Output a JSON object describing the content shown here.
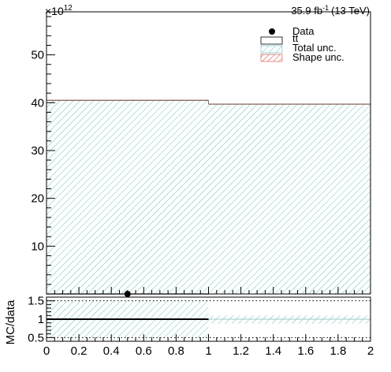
{
  "chart_data": [
    {
      "type": "bar",
      "panel": "main",
      "lumi_label": "35.9 fb",
      "lumi_sup": "-1",
      "lumi_energy": "(13 TeV)",
      "y_multiplier_base": "×10",
      "y_multiplier_exp": "12",
      "xlim": [
        0,
        2
      ],
      "ylim": [
        0,
        59
      ],
      "yticks": [
        10,
        20,
        30,
        40,
        50
      ],
      "ytick_labels": [
        "10",
        "20",
        "30",
        "40",
        "50"
      ],
      "bins": [
        [
          0,
          1
        ],
        [
          1,
          2
        ]
      ],
      "series": [
        {
          "name": "tt",
          "values": [
            40.5,
            39.7
          ]
        },
        {
          "name": "Data",
          "x": [
            0.5
          ],
          "values": [
            0.0
          ]
        }
      ],
      "uncertainty_bands": [
        {
          "name": "Total unc.",
          "lower": [
            0,
            0
          ],
          "upper": [
            40.5,
            39.7
          ]
        },
        {
          "name": "Shape unc.",
          "lower": [
            40.4,
            39.6
          ],
          "upper": [
            40.6,
            39.8
          ]
        }
      ],
      "legend": {
        "placement": "top-right",
        "entries": [
          {
            "label": "Data",
            "symbol": "marker"
          },
          {
            "label": "tt",
            "symbol": "box"
          },
          {
            "label": "Total unc.",
            "symbol": "hatch-teal"
          },
          {
            "label": "Shape unc.",
            "symbol": "hatch-red"
          }
        ]
      }
    },
    {
      "type": "line",
      "panel": "ratio",
      "ylabel": "MC/data",
      "xlim": [
        0,
        2
      ],
      "ylim": [
        0.4,
        1.6
      ],
      "yticks": [
        0.5,
        1,
        1.5
      ],
      "ytick_labels": [
        "0.5",
        "1",
        "1.5"
      ],
      "xticks": [
        0,
        0.2,
        0.4,
        0.6,
        0.8,
        1,
        1.2,
        1.4,
        1.6,
        1.8,
        2
      ],
      "xtick_labels": [
        "0",
        "0.2",
        "0.4",
        "0.6",
        "0.8",
        "1",
        "1.2",
        "1.4",
        "1.6",
        "1.8",
        "2"
      ],
      "dotted_reference_lines": [
        0.5,
        1.5
      ],
      "bins": [
        [
          0,
          1
        ],
        [
          1,
          2
        ]
      ],
      "ratio_values": [
        1.0,
        1.0
      ],
      "band": {
        "lower": [
          0.5,
          0.88
        ],
        "upper": [
          1.5,
          1.1
        ]
      }
    }
  ],
  "colors": {
    "axis": "#000000",
    "hatch_teal": "#6cbcbc",
    "hatch_red": "#d24a3a",
    "ratio_band": "#dcecec"
  }
}
